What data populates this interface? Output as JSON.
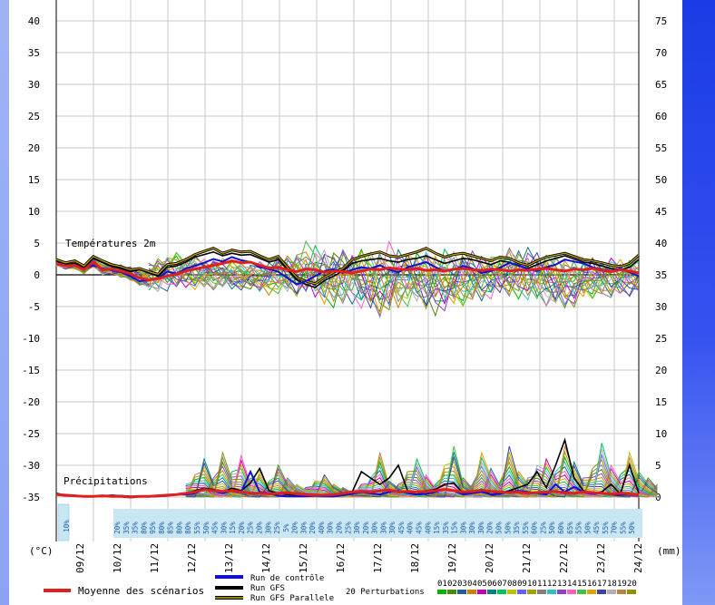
{
  "chart_data": {
    "type": "line",
    "title": "",
    "left_axis": {
      "unit": "(°C)",
      "ticks": [
        40,
        35,
        30,
        25,
        20,
        15,
        10,
        5,
        0,
        -5,
        -10,
        -15,
        -20,
        -25,
        -30,
        -35
      ],
      "ylim": [
        -35,
        40
      ]
    },
    "right_axis": {
      "unit": "(mm)",
      "ticks": [
        75,
        70,
        65,
        60,
        55,
        50,
        45,
        40,
        35,
        30,
        25,
        20,
        15,
        10,
        5,
        0
      ],
      "ylim": [
        0,
        75
      ]
    },
    "x_labels": [
      "09/12",
      "10/12",
      "11/12",
      "12/12",
      "13/12",
      "14/12",
      "15/12",
      "16/12",
      "17/12",
      "18/12",
      "19/12",
      "20/12",
      "21/12",
      "22/12",
      "23/12",
      "24/12"
    ],
    "grid": true,
    "annotations": {
      "temperature_label": "Températures 2m",
      "precipitation_label": "Précipitations"
    },
    "temperature_series": {
      "mean_name": "Moyenne des scénarios",
      "mean": [
        1.8,
        1.4,
        1.5,
        0.8,
        2.0,
        0.8,
        0.9,
        0.6,
        0.2,
        -0.5,
        -0.8,
        -0.6,
        -0.2,
        0.1,
        0.6,
        0.9,
        1.2,
        1.5,
        1.8,
        2.2,
        1.9,
        2.0,
        1.5,
        1.1,
        1.2,
        0.8,
        0.5,
        0.9,
        0.8,
        0.4,
        0.6,
        0.5,
        0.3,
        0.6,
        0.9,
        0.8,
        1.1,
        0.9,
        0.8,
        1.0,
        0.7,
        0.8,
        0.6,
        0.9,
        1.0,
        0.8,
        0.7,
        0.9,
        0.8,
        0.6,
        0.8,
        0.7,
        0.9,
        1.0,
        0.8,
        0.6,
        0.9,
        0.8,
        1.0,
        0.7,
        0.5,
        0.8,
        0.6,
        0.3
      ],
      "control": [
        1.8,
        1.5,
        1.6,
        0.9,
        1.5,
        1.0,
        0.7,
        0.4,
        -0.2,
        -1.0,
        -0.8,
        -0.6,
        0.5,
        0.2,
        1.0,
        1.4,
        1.9,
        2.5,
        2.1,
        2.8,
        2.3,
        2.0,
        1.2,
        0.9,
        0.5,
        -0.5,
        -1.5,
        -1.0,
        -0.2,
        0.6,
        0.9,
        0.3,
        0.8,
        1.2,
        1.0,
        1.5,
        0.8,
        0.4,
        1.2,
        1.6,
        2.0,
        1.2,
        0.6,
        0.8,
        1.4,
        1.0,
        0.3,
        0.6,
        1.1,
        1.9,
        1.5,
        0.9,
        0.6,
        1.2,
        1.6,
        2.4,
        2.1,
        1.8,
        1.2,
        0.8,
        0.6,
        1.0,
        0.4,
        -0.2
      ],
      "gfs": [
        2.2,
        1.6,
        1.8,
        1.0,
        2.6,
        1.9,
        1.3,
        1.0,
        0.5,
        0.8,
        0.3,
        -0.2,
        1.2,
        1.4,
        2.0,
        2.8,
        3.2,
        3.6,
        3.0,
        3.4,
        3.1,
        3.2,
        2.6,
        2.0,
        2.4,
        0.8,
        -0.8,
        -1.5,
        -2.0,
        -0.9,
        -0.2,
        0.6,
        1.8,
        2.2,
        2.4,
        2.6,
        2.2,
        2.0,
        2.4,
        2.6,
        3.0,
        2.4,
        1.8,
        2.2,
        2.6,
        2.4,
        2.0,
        1.6,
        2.2,
        2.0,
        1.4,
        1.0,
        1.6,
        2.2,
        2.6,
        3.0,
        2.5,
        2.0,
        1.8,
        1.4,
        1.0,
        0.8,
        1.2,
        2.4
      ],
      "gfs_parallel": [
        2.4,
        1.9,
        2.2,
        1.4,
        2.9,
        2.2,
        1.6,
        1.3,
        0.8,
        1.0,
        0.5,
        0.1,
        1.6,
        1.8,
        2.4,
        3.2,
        3.7,
        4.2,
        3.4,
        3.9,
        3.6,
        3.7,
        3.0,
        2.4,
        2.9,
        1.2,
        -0.4,
        -1.0,
        -1.4,
        -0.4,
        0.4,
        1.0,
        2.4,
        2.9,
        3.3,
        3.6,
        3.0,
        2.8,
        3.2,
        3.6,
        4.2,
        3.4,
        2.8,
        3.2,
        3.4,
        3.0,
        2.6,
        2.2,
        2.8,
        2.6,
        1.9,
        1.5,
        2.2,
        2.8,
        3.1,
        3.4,
        2.9,
        2.4,
        2.2,
        1.9,
        1.5,
        1.3,
        1.8,
        3.1
      ],
      "perturbation_spread": {
        "start_index": 10,
        "high": [
          2.5,
          3.5,
          4.2,
          4.3,
          3.8,
          3.2,
          3.0,
          2.8,
          2.6,
          2.4,
          2.2,
          2.0,
          2.4,
          2.8,
          3.2,
          3.4,
          4.2,
          5.8,
          6.0,
          5.4,
          5.0,
          4.8,
          4.6,
          4.4,
          4.2,
          4.8,
          5.6,
          5.2,
          4.8,
          4.6,
          4.4,
          4.6,
          4.8,
          4.4,
          4.2,
          4.0,
          3.8,
          4.0,
          4.6,
          5.2,
          5.4,
          5.0,
          4.4,
          3.6,
          3.2,
          3.0,
          3.6,
          3.8,
          3.4,
          3.2,
          3.0,
          3.2,
          3.4,
          3.6
        ],
        "low": [
          -3.0,
          -2.8,
          -2.6,
          -2.4,
          -2.2,
          -2.4,
          -2.6,
          -2.8,
          -3.0,
          -3.2,
          -3.0,
          -2.8,
          -3.4,
          -3.6,
          -3.2,
          -3.4,
          -3.6,
          -4.0,
          -4.4,
          -5.2,
          -6.0,
          -5.4,
          -4.8,
          -5.6,
          -6.6,
          -7.2,
          -6.8,
          -6.2,
          -5.8,
          -6.0,
          -6.4,
          -6.8,
          -6.2,
          -5.8,
          -5.4,
          -5.0,
          -4.8,
          -4.6,
          -4.2,
          -4.0,
          -3.8,
          -4.4,
          -5.0,
          -5.4,
          -5.8,
          -6.0,
          -5.6,
          -5.0,
          -4.6,
          -4.4,
          -4.2,
          -4.0,
          -3.6,
          -3.4
        ]
      }
    },
    "precipitation_series": {
      "mean": [
        0.4,
        0.3,
        0.2,
        0.1,
        0.1,
        0.2,
        0.1,
        0.1,
        0.0,
        0.1,
        0.1,
        0.2,
        0.3,
        0.4,
        0.6,
        0.8,
        1.2,
        1.0,
        0.9,
        1.0,
        0.8,
        0.6,
        0.6,
        0.5,
        0.6,
        0.7,
        0.5,
        0.4,
        0.3,
        0.3,
        0.4,
        0.6,
        0.8,
        0.9,
        0.8,
        1.0,
        1.1,
        0.8,
        0.9,
        0.8,
        0.9,
        1.0,
        1.2,
        1.0,
        0.8,
        0.9,
        1.1,
        0.9,
        0.8,
        0.7,
        0.8,
        0.6,
        0.7,
        0.8,
        0.9,
        0.7,
        0.6,
        0.8,
        0.7,
        0.6,
        0.5,
        0.6,
        0.5,
        0.4
      ],
      "gfs": [
        0.6,
        0.3,
        0.2,
        0.1,
        0.1,
        0.2,
        0.3,
        0.2,
        0.1,
        0.1,
        0.1,
        0.2,
        0.2,
        0.4,
        0.6,
        1.0,
        1.4,
        1.2,
        0.8,
        1.4,
        1.0,
        2.2,
        4.5,
        1.0,
        0.6,
        0.4,
        0.3,
        0.4,
        0.2,
        0.2,
        0.3,
        0.5,
        0.8,
        4.0,
        3.0,
        2.0,
        3.0,
        5.0,
        1.0,
        0.4,
        1.0,
        1.2,
        2.0,
        2.2,
        0.6,
        0.8,
        1.2,
        0.4,
        0.6,
        1.0,
        1.5,
        2.0,
        4.0,
        1.5,
        5.0,
        9.0,
        3.0,
        1.0,
        0.6,
        0.8,
        2.0,
        0.5,
        5.0,
        0.6
      ],
      "control": [
        0.4,
        0.2,
        0.2,
        0.1,
        0.1,
        0.1,
        0.2,
        0.2,
        0.1,
        0.1,
        0.1,
        0.1,
        0.2,
        0.4,
        0.4,
        0.6,
        1.2,
        1.0,
        0.6,
        1.0,
        0.8,
        4.0,
        0.8,
        0.6,
        0.2,
        0.1,
        0.1,
        0.1,
        0.2,
        0.1,
        0.1,
        0.3,
        0.5,
        0.8,
        0.6,
        0.4,
        0.8,
        1.0,
        0.6,
        0.4,
        0.5,
        0.8,
        1.2,
        1.0,
        0.4,
        0.6,
        0.8,
        0.4,
        0.5,
        0.8,
        1.0,
        0.8,
        0.6,
        0.4,
        2.0,
        0.8,
        1.6,
        0.8,
        0.5,
        0.6,
        0.4,
        0.3,
        0.4,
        0.3
      ],
      "perturbation_peaks": {
        "start_index": 14,
        "values": [
          2.0,
          3.5,
          6.0,
          3.0,
          7.0,
          4.0,
          6.5,
          3.0,
          4.0,
          2.5,
          5.0,
          3.0,
          2.0,
          1.5,
          2.5,
          3.5,
          2.0,
          1.5,
          1.0,
          2.0,
          3.0,
          7.0,
          2.5,
          2.0,
          4.0,
          6.0,
          3.5,
          2.0,
          5.0,
          8.0,
          3.0,
          2.0,
          7.0,
          4.5,
          2.5,
          8.0,
          4.0,
          3.0,
          5.0,
          6.0,
          4.0,
          8.0,
          5.5,
          3.0,
          4.5,
          8.5,
          5.0,
          3.5,
          7.0,
          4.0,
          3.0,
          2.0
        ]
      }
    },
    "precip_probabilities": [
      "10%",
      "20%",
      "35%",
      "35%",
      "80%",
      "95%",
      "80%",
      "85%",
      "80%",
      "80%",
      "55%",
      "50%",
      "45%",
      "30%",
      "15%",
      "20%",
      "25%",
      "20%",
      "30%",
      "25%",
      "5%",
      "20%",
      "30%",
      "20%",
      "40%",
      "30%",
      "20%",
      "25%",
      "30%",
      "20%",
      "30%",
      "30%",
      "30%",
      "45%",
      "40%",
      "45%",
      "40%",
      "15%",
      "35%",
      "15%",
      "30%",
      "30%",
      "30%",
      "20%",
      "50%",
      "50%",
      "35%",
      "55%",
      "60%",
      "25%",
      "50%",
      "60%",
      "65%",
      "55%",
      "50%",
      "45%",
      "55%",
      "70%",
      "55%",
      "50%"
    ],
    "legend": {
      "mean_label": "Moyenne des scénarios",
      "control_label": "Run de contrôle",
      "gfs_label": "Run GFS",
      "gfs_parallel_label": "Run GFS Parallele",
      "perturbations_label": "20 Perturbations",
      "perturbation_ids": [
        "01",
        "02",
        "03",
        "04",
        "05",
        "06",
        "07",
        "08",
        "09",
        "10",
        "11",
        "12",
        "13",
        "14",
        "15",
        "16",
        "17",
        "18",
        "19",
        "20"
      ],
      "perturbation_colors": [
        "#00b000",
        "#4a8a00",
        "#2060a0",
        "#d08000",
        "#c000c0",
        "#008080",
        "#00c060",
        "#c0c000",
        "#6060ff",
        "#a0a000",
        "#808080",
        "#30c0c0",
        "#9040c0",
        "#ff60c0",
        "#40c040",
        "#e0a000",
        "#4040a0",
        "#b0b0b0",
        "#c08040",
        "#909000"
      ]
    },
    "colors": {
      "mean": "#e02020",
      "control": "#1010d0",
      "gfs": "#000000",
      "gfs_parallel": "#c8a800",
      "grid": "#c8c8c8",
      "probability_band": "#c9e6f5"
    }
  }
}
